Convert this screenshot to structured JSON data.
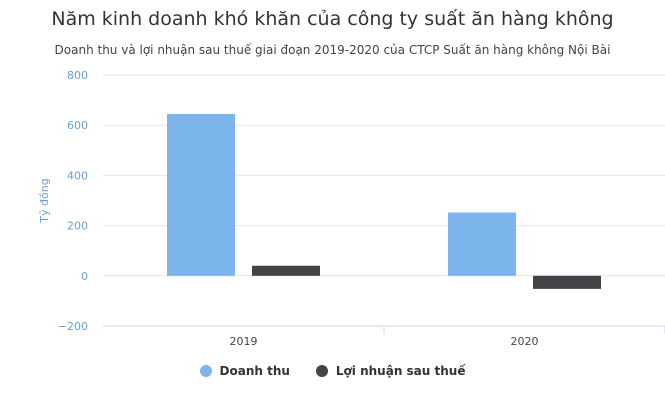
{
  "chart_data": {
    "type": "bar",
    "title": "Năm kinh doanh khó khăn của công ty suất ăn hàng không",
    "subtitle": "Doanh thu và lợi nhuận sau thuế giai đoạn 2019-2020 của CTCP Suất ăn hàng không Nội Bài",
    "xlabel": "",
    "ylabel": "Tỷ đồng",
    "categories": [
      "2019",
      "2020"
    ],
    "series": [
      {
        "name": "Doanh thu",
        "color": "#7cb5ec",
        "values": [
          645,
          252
        ]
      },
      {
        "name": "Lợi nhuận sau thuế",
        "color": "#434348",
        "values": [
          40,
          -52
        ]
      }
    ],
    "ylim": [
      -200,
      800
    ],
    "yticks": [
      -200,
      0,
      200,
      400,
      600,
      800
    ],
    "ytick_labels": [
      "−200",
      "0",
      "200",
      "400",
      "600",
      "800"
    ],
    "grid": true,
    "legend_position": "bottom-center"
  }
}
